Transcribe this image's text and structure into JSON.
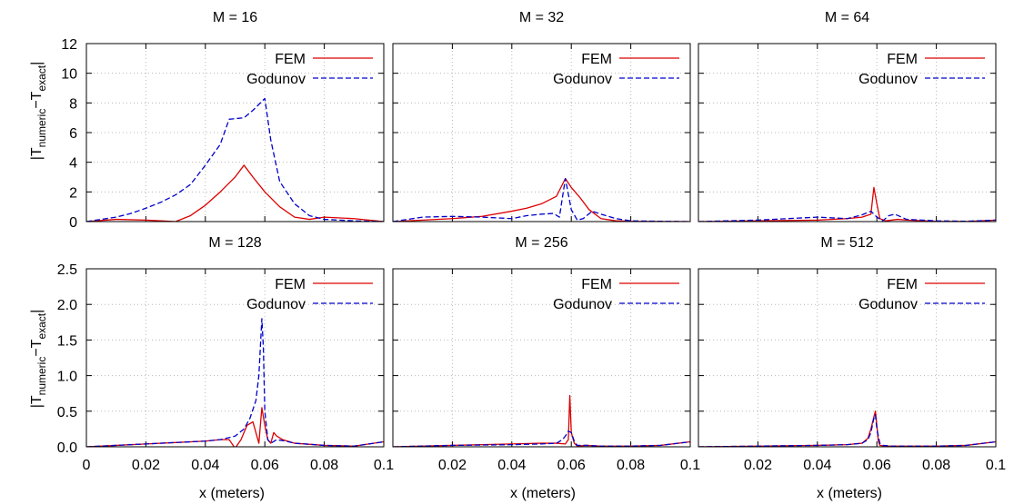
{
  "ylabel_parts": {
    "open": "|T",
    "sub1": "numeric",
    "mid": "−T",
    "sub2": "exact",
    "close": "|"
  },
  "chart_data": {
    "type": "line",
    "xlabel": "x (meters)",
    "xlim": [
      0,
      0.1
    ],
    "xticks": [
      "0",
      "0.02",
      "0.04",
      "0.06",
      "0.08",
      "0.1"
    ],
    "grid": true,
    "legend_position": "top-right",
    "series_styles": [
      {
        "name": "FEM",
        "color": "#dd0000",
        "dash": "solid"
      },
      {
        "name": "Godunov",
        "color": "#0000cc",
        "dash": "dashed"
      }
    ],
    "rows": [
      {
        "ylim": [
          0,
          12
        ],
        "yticks": [
          "0",
          "2",
          "4",
          "6",
          "8",
          "10",
          "12"
        ],
        "panels": [
          {
            "title": "M = 16",
            "series": [
              {
                "name": "FEM",
                "x": [
                  0,
                  0.01,
                  0.02,
                  0.025,
                  0.03,
                  0.035,
                  0.04,
                  0.045,
                  0.05,
                  0.053,
                  0.056,
                  0.06,
                  0.065,
                  0.07,
                  0.075,
                  0.08,
                  0.09,
                  0.1
                ],
                "y": [
                  0,
                  0.15,
                  0.1,
                  0.05,
                  0,
                  0.4,
                  1.1,
                  2.0,
                  3.0,
                  3.8,
                  3.0,
                  2.0,
                  1.0,
                  0.3,
                  0.15,
                  0.3,
                  0.2,
                  0
                ]
              },
              {
                "name": "Godunov",
                "x": [
                  0,
                  0.01,
                  0.015,
                  0.02,
                  0.025,
                  0.03,
                  0.035,
                  0.04,
                  0.045,
                  0.048,
                  0.053,
                  0.056,
                  0.06,
                  0.062,
                  0.065,
                  0.07,
                  0.075,
                  0.08,
                  0.09,
                  0.1
                ],
                "y": [
                  0,
                  0.3,
                  0.55,
                  0.9,
                  1.3,
                  1.8,
                  2.5,
                  3.8,
                  5.2,
                  6.9,
                  7.0,
                  7.5,
                  8.3,
                  5.5,
                  2.7,
                  1.2,
                  0.4,
                  0.15,
                  0.05,
                  0
                ]
              }
            ]
          },
          {
            "title": "M = 32",
            "series": [
              {
                "name": "FEM",
                "x": [
                  0,
                  0.01,
                  0.02,
                  0.03,
                  0.04,
                  0.045,
                  0.05,
                  0.055,
                  0.058,
                  0.06,
                  0.063,
                  0.066,
                  0.07,
                  0.075,
                  0.08,
                  0.09,
                  0.1
                ],
                "y": [
                  0,
                  0.1,
                  0.2,
                  0.35,
                  0.7,
                  0.9,
                  1.2,
                  1.7,
                  2.9,
                  2.3,
                  1.6,
                  0.8,
                  0.2,
                  0.05,
                  0.02,
                  0.01,
                  0
                ]
              },
              {
                "name": "Godunov",
                "x": [
                  0,
                  0.01,
                  0.02,
                  0.03,
                  0.04,
                  0.045,
                  0.05,
                  0.054,
                  0.056,
                  0.058,
                  0.06,
                  0.062,
                  0.064,
                  0.067,
                  0.07,
                  0.075,
                  0.08,
                  0.09,
                  0.1
                ],
                "y": [
                  0,
                  0.3,
                  0.35,
                  0.3,
                  0.2,
                  0.4,
                  0.5,
                  0.55,
                  0.3,
                  2.9,
                  0.8,
                  0.1,
                  0.2,
                  0.7,
                  0.5,
                  0.2,
                  0.05,
                  0.02,
                  0
                ]
              }
            ]
          },
          {
            "title": "M = 64",
            "series": [
              {
                "name": "FEM",
                "x": [
                  0,
                  0.02,
                  0.04,
                  0.05,
                  0.055,
                  0.058,
                  0.059,
                  0.06,
                  0.061,
                  0.063,
                  0.067,
                  0.07,
                  0.08,
                  0.09,
                  0.1
                ],
                "y": [
                  0,
                  0.05,
                  0.1,
                  0.2,
                  0.3,
                  0.5,
                  2.3,
                  1.2,
                  0.2,
                  0.05,
                  0.15,
                  0.1,
                  0.02,
                  0.01,
                  0.1
                ]
              },
              {
                "name": "Godunov",
                "x": [
                  0,
                  0.02,
                  0.03,
                  0.04,
                  0.045,
                  0.05,
                  0.055,
                  0.058,
                  0.06,
                  0.062,
                  0.064,
                  0.066,
                  0.07,
                  0.08,
                  0.09,
                  0.1
                ],
                "y": [
                  0,
                  0.1,
                  0.2,
                  0.3,
                  0.25,
                  0.2,
                  0.45,
                  0.7,
                  0.3,
                  0.05,
                  0.4,
                  0.5,
                  0.15,
                  0.05,
                  0.02,
                  0.1
                ]
              }
            ]
          }
        ]
      },
      {
        "ylim": [
          0,
          2.5
        ],
        "yticks": [
          "0.0",
          "0.5",
          "1.0",
          "1.5",
          "2.0",
          "2.5"
        ],
        "panels": [
          {
            "title": "M = 128",
            "series": [
              {
                "name": "FEM",
                "x": [
                  0,
                  0.01,
                  0.02,
                  0.03,
                  0.04,
                  0.045,
                  0.048,
                  0.05,
                  0.052,
                  0.054,
                  0.056,
                  0.058,
                  0.059,
                  0.06,
                  0.061,
                  0.062,
                  0.063,
                  0.064,
                  0.066,
                  0.07,
                  0.08,
                  0.09,
                  0.1
                ],
                "y": [
                  0,
                  0.02,
                  0.04,
                  0.06,
                  0.08,
                  0.1,
                  0.1,
                  -0.02,
                  0.1,
                  0.3,
                  0.35,
                  0.05,
                  0.55,
                  0.3,
                  0.1,
                  0.05,
                  0.2,
                  0.15,
                  0.1,
                  0.05,
                  0.02,
                  0.01,
                  0.07
                ]
              },
              {
                "name": "Godunov",
                "x": [
                  0,
                  0.01,
                  0.02,
                  0.03,
                  0.04,
                  0.045,
                  0.05,
                  0.053,
                  0.055,
                  0.057,
                  0.058,
                  0.059,
                  0.0595,
                  0.06,
                  0.061,
                  0.062,
                  0.064,
                  0.067,
                  0.07,
                  0.08,
                  0.09,
                  0.1
                ],
                "y": [
                  0,
                  0.02,
                  0.04,
                  0.06,
                  0.08,
                  0.1,
                  0.15,
                  0.25,
                  0.4,
                  0.65,
                  1.0,
                  1.8,
                  1.4,
                  0.5,
                  0.1,
                  0.05,
                  0.1,
                  0.08,
                  0.05,
                  0.02,
                  0.01,
                  0.07
                ]
              }
            ]
          },
          {
            "title": "M = 256",
            "series": [
              {
                "name": "FEM",
                "x": [
                  0,
                  0.02,
                  0.04,
                  0.05,
                  0.055,
                  0.058,
                  0.059,
                  0.0595,
                  0.06,
                  0.061,
                  0.062,
                  0.065,
                  0.07,
                  0.08,
                  0.09,
                  0.1
                ],
                "y": [
                  0,
                  0.02,
                  0.04,
                  0.05,
                  0.05,
                  0.04,
                  0.1,
                  0.72,
                  0.2,
                  0.05,
                  0.01,
                  0.02,
                  0.01,
                  0.01,
                  0.02,
                  0.07
                ]
              },
              {
                "name": "Godunov",
                "x": [
                  0,
                  0.02,
                  0.04,
                  0.05,
                  0.055,
                  0.057,
                  0.058,
                  0.059,
                  0.06,
                  0.061,
                  0.062,
                  0.065,
                  0.07,
                  0.08,
                  0.09,
                  0.1
                ],
                "y": [
                  0,
                  0.02,
                  0.03,
                  0.04,
                  0.05,
                  0.1,
                  0.15,
                  0.22,
                  0.2,
                  0.08,
                  0.02,
                  0.02,
                  0.01,
                  0.01,
                  0.02,
                  0.07
                ]
              }
            ]
          },
          {
            "title": "M = 512",
            "series": [
              {
                "name": "FEM",
                "x": [
                  0,
                  0.02,
                  0.04,
                  0.05,
                  0.055,
                  0.057,
                  0.058,
                  0.059,
                  0.0595,
                  0.06,
                  0.0605,
                  0.061,
                  0.063,
                  0.07,
                  0.08,
                  0.09,
                  0.1
                ],
                "y": [
                  0,
                  0.01,
                  0.02,
                  0.03,
                  0.05,
                  0.12,
                  0.25,
                  0.42,
                  0.5,
                  0.3,
                  0.08,
                  0.02,
                  0.01,
                  0.01,
                  0.01,
                  0.02,
                  0.07
                ]
              },
              {
                "name": "Godunov",
                "x": [
                  0,
                  0.02,
                  0.04,
                  0.05,
                  0.055,
                  0.057,
                  0.058,
                  0.059,
                  0.0595,
                  0.06,
                  0.061,
                  0.062,
                  0.065,
                  0.07,
                  0.08,
                  0.09,
                  0.1
                ],
                "y": [
                  0,
                  0.01,
                  0.02,
                  0.03,
                  0.05,
                  0.1,
                  0.2,
                  0.4,
                  0.45,
                  0.25,
                  0.05,
                  0.02,
                  0.01,
                  0.01,
                  0.01,
                  0.02,
                  0.07
                ]
              }
            ]
          }
        ]
      }
    ]
  }
}
